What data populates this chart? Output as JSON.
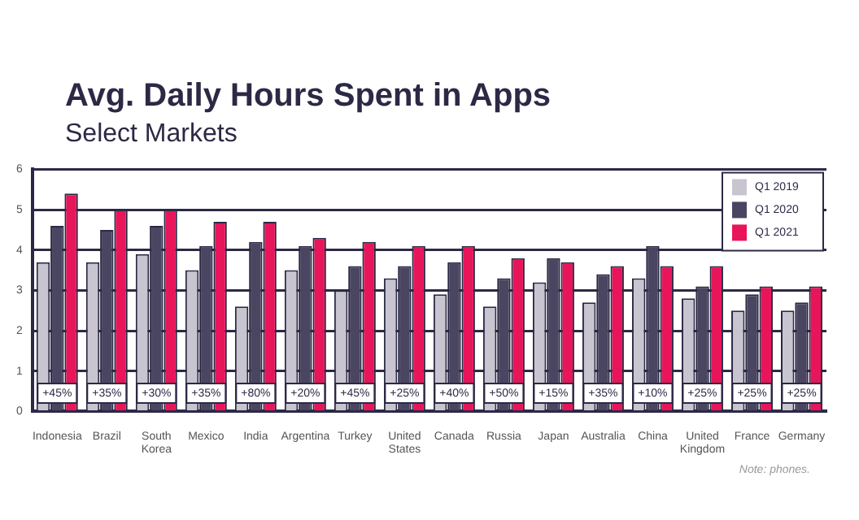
{
  "chart_data": {
    "type": "bar",
    "title": "Avg. Daily Hours Spent in Apps",
    "subtitle": "Select Markets",
    "categories": [
      "Indonesia",
      "Brazil",
      "South Korea",
      "Mexico",
      "India",
      "Argentina",
      "Turkey",
      "United States",
      "Canada",
      "Russia",
      "Japan",
      "Australia",
      "China",
      "United Kingdom",
      "France",
      "Germany"
    ],
    "series": [
      {
        "name": "Q1 2019",
        "color": "#c8c5d0",
        "values": [
          3.7,
          3.7,
          3.9,
          3.5,
          2.6,
          3.5,
          3.0,
          3.3,
          2.9,
          2.6,
          3.2,
          2.7,
          3.3,
          2.8,
          2.5,
          2.5
        ]
      },
      {
        "name": "Q1 2020",
        "color": "#4a4560",
        "values": [
          4.6,
          4.5,
          4.6,
          4.1,
          4.2,
          4.1,
          3.6,
          3.6,
          3.7,
          3.3,
          3.8,
          3.4,
          4.1,
          3.1,
          2.9,
          2.7
        ]
      },
      {
        "name": "Q1 2021",
        "color": "#e8155a",
        "values": [
          5.4,
          5.0,
          5.0,
          4.7,
          4.7,
          4.3,
          4.2,
          4.1,
          4.1,
          3.8,
          3.7,
          3.6,
          3.6,
          3.6,
          3.1,
          3.1
        ]
      }
    ],
    "ylim": [
      0,
      6
    ],
    "yticks": [
      0,
      1,
      2,
      3,
      4,
      5,
      6
    ],
    "grid": "y",
    "legend": "top right",
    "annotations": [
      {
        "text": "+45%",
        "x": "Indonesia",
        "y": 0.45
      },
      {
        "text": "+35%",
        "x": "Brazil",
        "y": 0.45
      },
      {
        "text": "+30%",
        "x": "South Korea",
        "y": 0.45
      },
      {
        "text": "+35%",
        "x": "Mexico",
        "y": 0.45
      },
      {
        "text": "+80%",
        "x": "India",
        "y": 0.45
      },
      {
        "text": "+20%",
        "x": "Argentina",
        "y": 0.45
      },
      {
        "text": "+45%",
        "x": "Turkey",
        "y": 0.45
      },
      {
        "text": "+25%",
        "x": "United States",
        "y": 0.45
      },
      {
        "text": "+40%",
        "x": "Canada",
        "y": 0.45
      },
      {
        "text": "+50%",
        "x": "Russia",
        "y": 0.45
      },
      {
        "text": "+15%",
        "x": "Japan",
        "y": 0.45
      },
      {
        "text": "+35%",
        "x": "Australia",
        "y": 0.45
      },
      {
        "text": "+10%",
        "x": "China",
        "y": 0.45
      },
      {
        "text": "+25%",
        "x": "United Kingdom",
        "y": 0.45
      },
      {
        "text": "+25%",
        "x": "France",
        "y": 0.45
      },
      {
        "text": "+25%",
        "x": "Germany",
        "y": 0.45
      },
      "Note: phones."
    ]
  }
}
